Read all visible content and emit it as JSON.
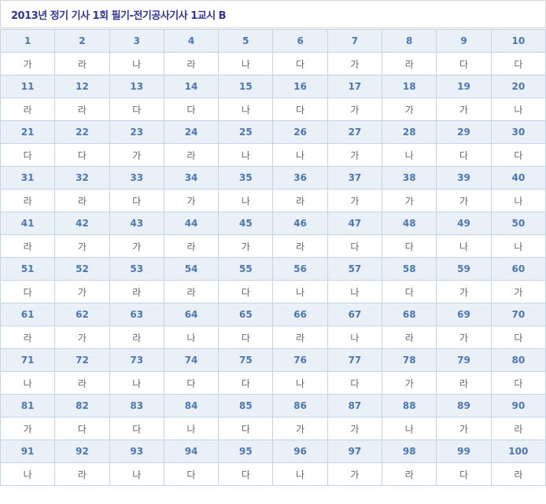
{
  "header": {
    "title": "2013년 정기 기사 1회 필기-전기공사기사 1교시 B"
  },
  "colors": {
    "title_text": "#333399",
    "number_text": "#4d77b2",
    "answer_text": "#666666",
    "number_row_bg": "#e9f0f8",
    "table_border": "#c2d5e8",
    "titlebar_border": "#d5d5d5",
    "page_bg": "#ffffff"
  },
  "answer_table": {
    "rows": [
      {
        "numbers": [
          "1",
          "2",
          "3",
          "4",
          "5",
          "6",
          "7",
          "8",
          "9",
          "10"
        ],
        "answers": [
          "가",
          "라",
          "나",
          "라",
          "나",
          "다",
          "가",
          "라",
          "다",
          "다"
        ]
      },
      {
        "numbers": [
          "11",
          "12",
          "13",
          "14",
          "15",
          "16",
          "17",
          "18",
          "19",
          "20"
        ],
        "answers": [
          "라",
          "라",
          "다",
          "다",
          "나",
          "다",
          "가",
          "가",
          "가",
          "나"
        ]
      },
      {
        "numbers": [
          "21",
          "22",
          "23",
          "24",
          "25",
          "26",
          "27",
          "28",
          "29",
          "30"
        ],
        "answers": [
          "다",
          "다",
          "가",
          "라",
          "나",
          "나",
          "가",
          "나",
          "다",
          "다"
        ]
      },
      {
        "numbers": [
          "31",
          "32",
          "33",
          "34",
          "35",
          "36",
          "37",
          "38",
          "39",
          "40"
        ],
        "answers": [
          "라",
          "라",
          "다",
          "가",
          "나",
          "라",
          "가",
          "가",
          "가",
          "나"
        ]
      },
      {
        "numbers": [
          "41",
          "42",
          "43",
          "44",
          "45",
          "46",
          "47",
          "48",
          "49",
          "50"
        ],
        "answers": [
          "라",
          "가",
          "가",
          "라",
          "가",
          "라",
          "다",
          "다",
          "나",
          "나"
        ]
      },
      {
        "numbers": [
          "51",
          "52",
          "53",
          "54",
          "55",
          "56",
          "57",
          "58",
          "59",
          "60"
        ],
        "answers": [
          "다",
          "가",
          "라",
          "라",
          "다",
          "나",
          "나",
          "다",
          "가",
          "가"
        ]
      },
      {
        "numbers": [
          "61",
          "62",
          "63",
          "64",
          "65",
          "66",
          "67",
          "68",
          "69",
          "70"
        ],
        "answers": [
          "라",
          "가",
          "라",
          "나",
          "다",
          "라",
          "나",
          "라",
          "가",
          "다"
        ]
      },
      {
        "numbers": [
          "71",
          "72",
          "73",
          "74",
          "75",
          "76",
          "77",
          "78",
          "79",
          "80"
        ],
        "answers": [
          "나",
          "라",
          "나",
          "다",
          "다",
          "나",
          "다",
          "가",
          "라",
          "다"
        ]
      },
      {
        "numbers": [
          "81",
          "82",
          "83",
          "84",
          "85",
          "86",
          "87",
          "88",
          "89",
          "90"
        ],
        "answers": [
          "가",
          "다",
          "다",
          "나",
          "다",
          "가",
          "가",
          "나",
          "가",
          "라"
        ]
      },
      {
        "numbers": [
          "91",
          "92",
          "93",
          "94",
          "95",
          "96",
          "97",
          "98",
          "99",
          "100"
        ],
        "answers": [
          "나",
          "라",
          "나",
          "다",
          "다",
          "나",
          "가",
          "라",
          "다",
          "라"
        ]
      }
    ]
  }
}
